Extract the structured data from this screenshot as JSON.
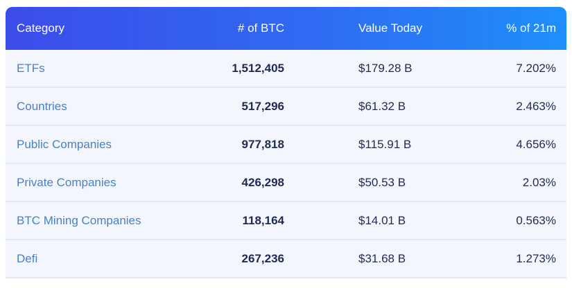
{
  "table": {
    "headers": {
      "category": "Category",
      "btc": "# of BTC",
      "value": "Value Today",
      "pct": "% of 21m"
    },
    "rows": [
      {
        "category": "ETFs",
        "btc": "1,512,405",
        "value": "$179.28 B",
        "pct": "7.202%"
      },
      {
        "category": "Countries",
        "btc": "517,296",
        "value": "$61.32 B",
        "pct": "2.463%"
      },
      {
        "category": "Public Companies",
        "btc": "977,818",
        "value": "$115.91 B",
        "pct": "4.656%"
      },
      {
        "category": "Private Companies",
        "btc": "426,298",
        "value": "$50.53 B",
        "pct": "2.03%"
      },
      {
        "category": "BTC Mining Companies",
        "btc": "118,164",
        "value": "$14.01 B",
        "pct": "0.563%"
      },
      {
        "category": "Defi",
        "btc": "267,236",
        "value": "$31.68 B",
        "pct": "1.273%"
      }
    ],
    "colors": {
      "header_gradient_start": "#3c4ce9",
      "header_gradient_end": "#1e8ffa",
      "header_text": "#ffffff",
      "row_bg": "#f4f6fd",
      "divider": "#e4e8f3",
      "category_text": "#4a80c4",
      "value_text": "#1f2a54"
    }
  },
  "chart_data": {
    "type": "table",
    "title": "",
    "columns": [
      "Category",
      "# of BTC",
      "Value Today",
      "% of 21m"
    ],
    "rows": [
      [
        "ETFs",
        1512405,
        "$179.28 B",
        7.202
      ],
      [
        "Countries",
        517296,
        "$61.32 B",
        2.463
      ],
      [
        "Public Companies",
        977818,
        "$115.91 B",
        4.656
      ],
      [
        "Private Companies",
        426298,
        "$50.53 B",
        2.03
      ],
      [
        "BTC Mining Companies",
        118164,
        "$14.01 B",
        0.563
      ],
      [
        "Defi",
        267236,
        "$31.68 B",
        1.273
      ]
    ],
    "units": {
      "# of BTC": "BTC",
      "Value Today": "USD billions",
      "% of 21m": "percent of 21M supply"
    }
  }
}
